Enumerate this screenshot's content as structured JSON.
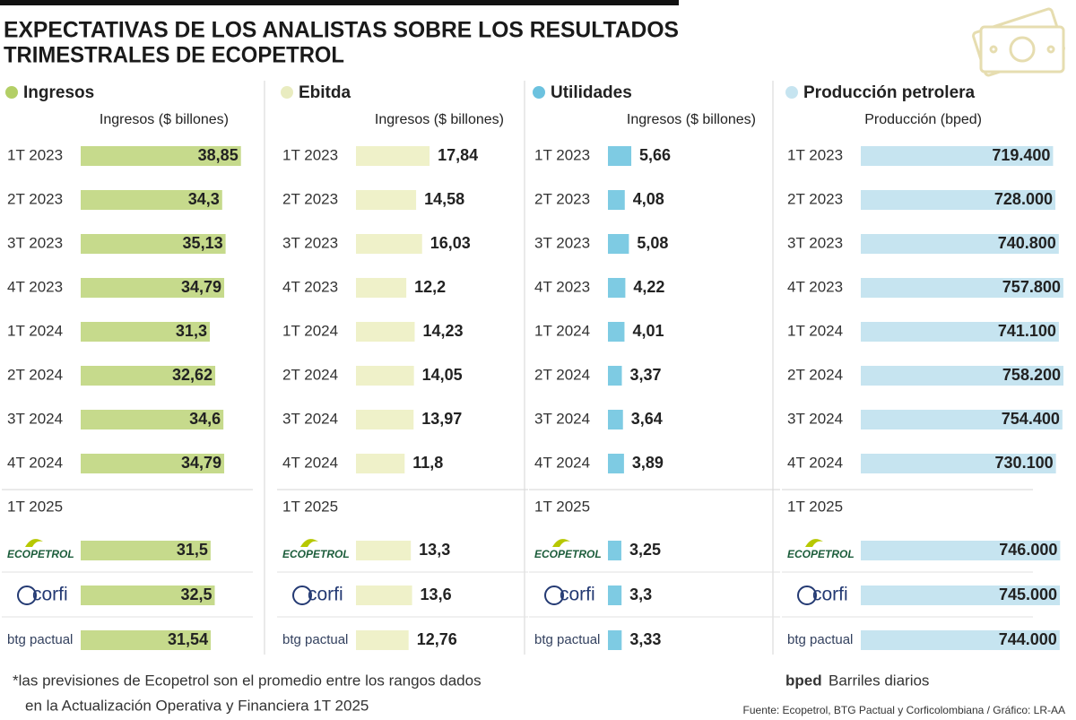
{
  "title": [
    "EXPECTATIVAS DE LOS ANALISTAS SOBRE LOS RESULTADOS",
    "TRIMESTRALES DE ECOPETROL"
  ],
  "chart_data": [
    {
      "type": "bar",
      "orientation": "horizontal",
      "title": "Ingresos",
      "subtitle": "Ingresos ($ billones)",
      "color": "#c6da8c",
      "legend_color": "#b3cf66",
      "categories": [
        "1T 2023",
        "2T 2023",
        "3T 2023",
        "4T 2023",
        "1T 2024",
        "2T 2024",
        "3T 2024",
        "4T 2024",
        "ECOPETROL",
        "corfi",
        "btg pactual"
      ],
      "section_label": "1T 2025",
      "values": [
        38.85,
        34.3,
        35.13,
        34.79,
        31.3,
        32.62,
        34.6,
        34.79,
        31.5,
        32.5,
        31.54
      ],
      "value_labels": [
        "38,85",
        "34,3",
        "35,13",
        "34,79",
        "31,3",
        "32,62",
        "34,6",
        "34,79",
        "31,5",
        "32,5",
        "31,54"
      ]
    },
    {
      "type": "bar",
      "orientation": "horizontal",
      "title": "Ebitda",
      "subtitle": "Ingresos ($ billones)",
      "color": "#eff1c9",
      "legend_color": "#e9ecc0",
      "categories": [
        "1T 2023",
        "2T 2023",
        "3T 2023",
        "4T 2023",
        "1T 2024",
        "2T 2024",
        "3T 2024",
        "4T 2024",
        "ECOPETROL",
        "corfi",
        "btg pactual"
      ],
      "section_label": "1T 2025",
      "values": [
        17.84,
        14.58,
        16.03,
        12.2,
        14.23,
        14.05,
        13.97,
        11.8,
        13.3,
        13.6,
        12.76
      ],
      "value_labels": [
        "17,84",
        "14,58",
        "16,03",
        "12,2",
        "14,23",
        "14,05",
        "13,97",
        "11,8",
        "13,3",
        "13,6",
        "12,76"
      ]
    },
    {
      "type": "bar",
      "orientation": "horizontal",
      "title": "Utilidades",
      "subtitle": "Ingresos ($ billones)",
      "color": "#7ecbe3",
      "legend_color": "#6cc2df",
      "categories": [
        "1T 2023",
        "2T 2023",
        "3T 2023",
        "4T 2023",
        "1T 2024",
        "2T 2024",
        "3T 2024",
        "4T 2024",
        "ECOPETROL",
        "corfi",
        "btg pactual"
      ],
      "section_label": "1T 2025",
      "values": [
        5.66,
        4.08,
        5.08,
        4.22,
        4.01,
        3.37,
        3.64,
        3.89,
        3.25,
        3.3,
        3.33
      ],
      "value_labels": [
        "5,66",
        "4,08",
        "5,08",
        "4,22",
        "4,01",
        "3,37",
        "3,64",
        "3,89",
        "3,25",
        "3,3",
        "3,33"
      ]
    },
    {
      "type": "bar",
      "orientation": "horizontal",
      "title": "Producción petrolera",
      "subtitle": "Producción (bped)",
      "color": "#c6e4f0",
      "legend_color": "#c6e4f0",
      "categories": [
        "1T 2023",
        "2T 2023",
        "3T 2023",
        "4T 2023",
        "1T 2024",
        "2T 2024",
        "3T 2024",
        "4T 2024",
        "ECOPETROL",
        "corfi",
        "btg pactual"
      ],
      "section_label": "1T 2025",
      "values": [
        719400,
        728000,
        740800,
        757800,
        741100,
        758200,
        754400,
        730100,
        746000,
        745000,
        744000
      ],
      "value_labels": [
        "719.400",
        "728.000",
        "740.800",
        "757.800",
        "741.100",
        "758.200",
        "754.400",
        "730.100",
        "746.000",
        "745.000",
        "744.000"
      ]
    }
  ],
  "footnote": [
    "*las previsiones de Ecopetrol son el promedio entre los rangos dados",
    "en la Actualización Operativa y Financiera 1T 2025"
  ],
  "legend_note": {
    "term": "bped",
    "text": "Barriles diarios"
  },
  "source": "Fuente: Ecopetrol, BTG Pactual y Corficolombiana / Gráfico: LR-AA"
}
